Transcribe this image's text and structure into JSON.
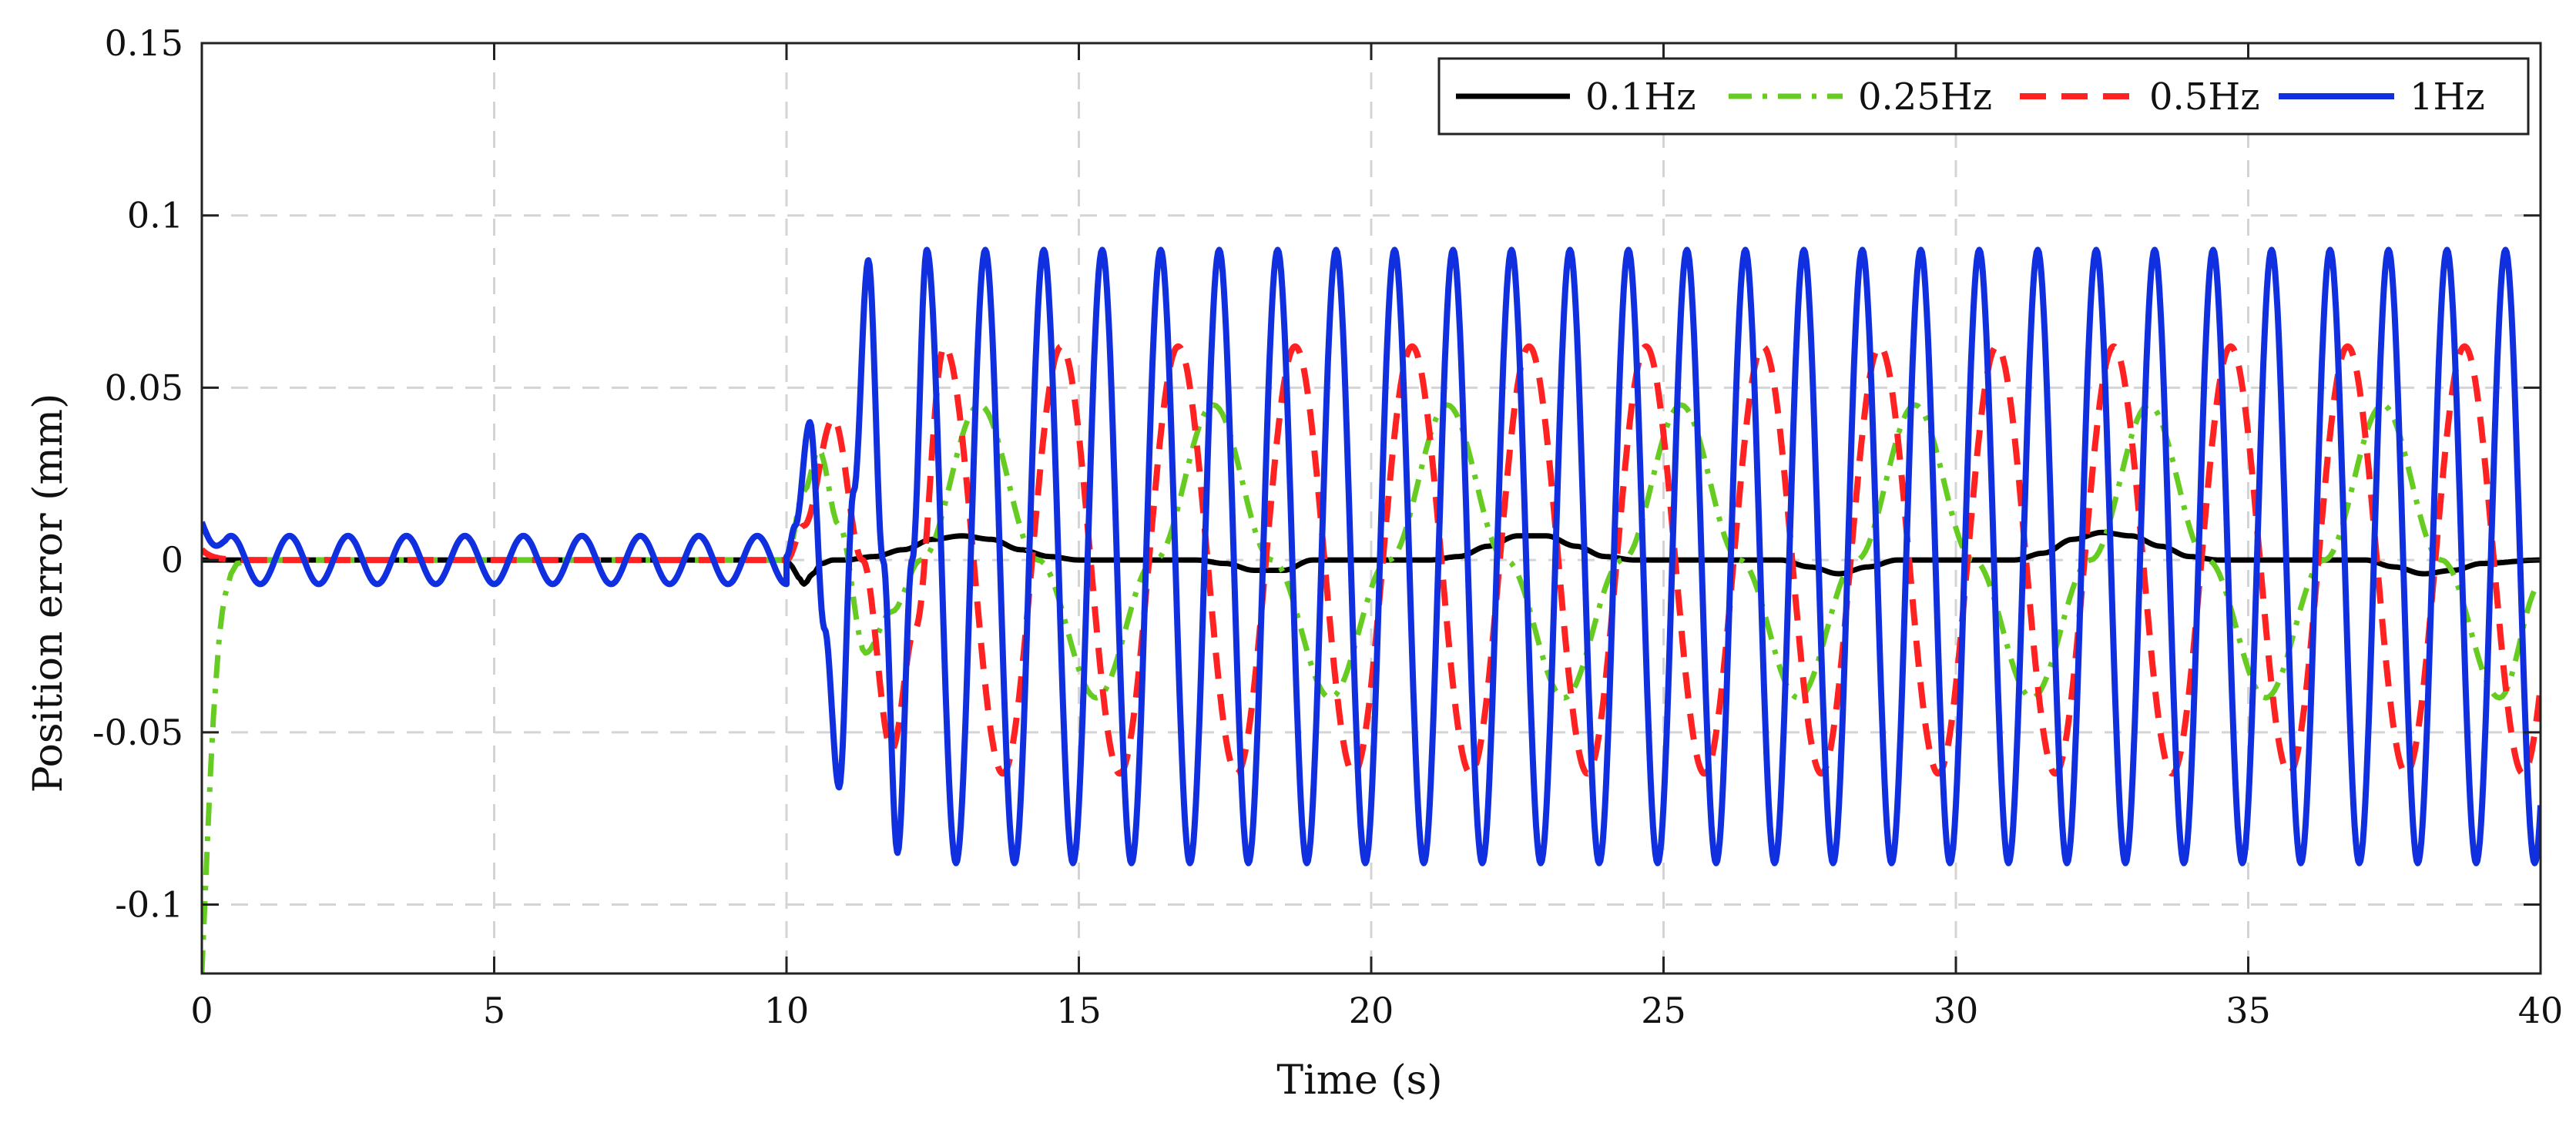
{
  "chart_data": {
    "type": "line",
    "title": "",
    "xlabel": "Time (s)",
    "ylabel": "Position error (mm)",
    "xlim": [
      0,
      40
    ],
    "ylim": [
      -0.12,
      0.15
    ],
    "x_ticks": [
      0,
      5,
      10,
      15,
      20,
      25,
      30,
      35,
      40
    ],
    "x_tick_labels": [
      "0",
      "5",
      "10",
      "15",
      "20",
      "25",
      "30",
      "35",
      "40"
    ],
    "y_ticks": [
      -0.1,
      -0.05,
      0,
      0.05,
      0.1,
      0.15
    ],
    "y_tick_labels": [
      "-0.1",
      "-0.05",
      "0",
      "0.05",
      "0.1",
      "0.15"
    ],
    "grid": true,
    "legend_position": "top-right",
    "series": [
      {
        "name": "0.1Hz",
        "color": "#000000",
        "dash": "solid",
        "description": "Near zero throughout; small bumps after t=10 s",
        "x": [
          0,
          10,
          10.1,
          10.2,
          10.3,
          10.45,
          10.6,
          10.8,
          11,
          11.5,
          12,
          12.5,
          13,
          13.5,
          14,
          14.5,
          15,
          17,
          17.5,
          18,
          18.5,
          19,
          21,
          21.5,
          22,
          22.5,
          23,
          23.5,
          24,
          24.5,
          26,
          27,
          27.5,
          28,
          28.5,
          29,
          31,
          31.5,
          32,
          32.5,
          33,
          33.5,
          34,
          34.5,
          37,
          37.5,
          38,
          38.5,
          39,
          40
        ],
        "y": [
          0,
          0,
          -0.002,
          -0.005,
          -0.007,
          -0.004,
          -0.001,
          0,
          0,
          0.001,
          0.003,
          0.006,
          0.007,
          0.006,
          0.003,
          0.001,
          0,
          0,
          -0.001,
          -0.003,
          -0.003,
          0,
          0,
          0.001,
          0.004,
          0.007,
          0.007,
          0.004,
          0.001,
          0,
          0,
          0,
          -0.002,
          -0.004,
          -0.002,
          0,
          0,
          0.002,
          0.006,
          0.008,
          0.007,
          0.004,
          0.001,
          0,
          0,
          -0.002,
          -0.004,
          -0.003,
          -0.001,
          0
        ]
      },
      {
        "name": "0.25Hz",
        "color": "#66cc22",
        "dash": "dash-dot",
        "description": "Starts at -0.12, settles near 0 by t=0.6 s; sinusoid period 4 s from t=10 s",
        "x": [
          0,
          0.05,
          0.1,
          0.15,
          0.2,
          0.25,
          0.3,
          0.35,
          0.4,
          0.5,
          0.6,
          0.8,
          1,
          10,
          10.3,
          10.55,
          10.9,
          11.35,
          11.8,
          12.3,
          13.3,
          14.3,
          15.3,
          16.3,
          17.3,
          18.3,
          19.3,
          20.3,
          21.3,
          22.3,
          23.3,
          24.3,
          25.3,
          26.3,
          27.3,
          28.3,
          29.3,
          30.3,
          31.3,
          32.3,
          33.3,
          34.3,
          35.3,
          36.3,
          37.3,
          38.3,
          39.3,
          40
        ],
        "y": [
          -0.12,
          -0.1,
          -0.08,
          -0.061,
          -0.045,
          -0.033,
          -0.022,
          -0.015,
          -0.01,
          -0.004,
          -0.001,
          0,
          0,
          0,
          0.02,
          0.032,
          0.01,
          -0.027,
          -0.015,
          0,
          0.045,
          0,
          -0.04,
          0,
          0.045,
          0,
          -0.04,
          0,
          0.045,
          0,
          -0.04,
          0,
          0.045,
          0,
          -0.04,
          0,
          0.045,
          0,
          -0.04,
          0,
          0.045,
          0,
          -0.04,
          0,
          0.045,
          0,
          -0.04,
          -0.007
        ]
      },
      {
        "name": "0.5Hz",
        "color": "#ff2222",
        "dash": "dashed",
        "description": "Near zero until t=10 s; sinusoid period 2 s, amplitude ~0.062 mm",
        "start_value": 0.003,
        "settle_time": 0.5,
        "steady_from": 12.7,
        "amplitude": 0.062,
        "period": 2.0,
        "phase_peak_time": 12.7,
        "transient_x": [
          10,
          10.3,
          10.8,
          11.3,
          11.8,
          12.2,
          12.7
        ],
        "transient_y": [
          0,
          0.01,
          0.041,
          0,
          -0.055,
          -0.02,
          0.062
        ]
      },
      {
        "name": "1Hz",
        "color": "#1030e0",
        "dash": "solid",
        "description": "Small oscillation before t=10 s, then sinusoid period 1 s, amplitude ~0.09 mm",
        "start_value": 0.011,
        "pre_amplitude": 0.007,
        "pre_period": 1.0,
        "steady_from": 12.4,
        "amplitude": 0.09,
        "period": 1.0,
        "phase_peak_time": 12.4,
        "trough_value": -0.088,
        "transient_x": [
          10,
          10.15,
          10.4,
          10.65,
          10.9,
          11.15,
          11.4,
          11.65,
          11.9,
          12.15,
          12.4
        ],
        "transient_y": [
          0.001,
          0.01,
          0.04,
          -0.02,
          -0.066,
          0.02,
          0.087,
          0,
          -0.085,
          0,
          0.09
        ]
      }
    ]
  }
}
